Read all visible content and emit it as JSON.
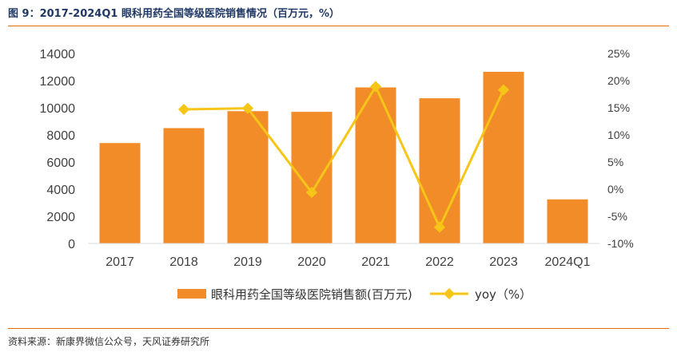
{
  "header": {
    "title": "图 9：2017-2024Q1 眼科用药全国等级医院销售情况（百万元，%）"
  },
  "footer": {
    "source": "资料来源：新康界微信公众号，天风证券研究所"
  },
  "colors": {
    "bar": "#f28c28",
    "line": "#f5c518",
    "rule": "#e46c0a"
  },
  "chart_data": {
    "type": "bar",
    "categories": [
      "2017",
      "2018",
      "2019",
      "2020",
      "2021",
      "2022",
      "2023",
      "2024Q1"
    ],
    "series": [
      {
        "name": "眼科用药全国等级医院销售额(百万元)",
        "type": "bar",
        "axis": "left",
        "values": [
          7400,
          8500,
          9750,
          9700,
          11500,
          10700,
          12650,
          3250
        ]
      },
      {
        "name": "yoy（%）",
        "type": "line",
        "axis": "right",
        "marker": "diamond",
        "values": [
          null,
          14.7,
          14.9,
          -0.6,
          18.9,
          -7.0,
          18.3,
          null
        ]
      }
    ],
    "y_left": {
      "min": 0,
      "max": 14000,
      "step": 2000,
      "ticks": [
        "0",
        "2000",
        "4000",
        "6000",
        "8000",
        "10000",
        "12000",
        "14000"
      ]
    },
    "y_right": {
      "min": -10,
      "max": 25,
      "step": 5,
      "ticks": [
        "-10%",
        "-5%",
        "0%",
        "5%",
        "10%",
        "15%",
        "20%",
        "25%"
      ]
    },
    "legend_position": "bottom",
    "grid": false
  }
}
